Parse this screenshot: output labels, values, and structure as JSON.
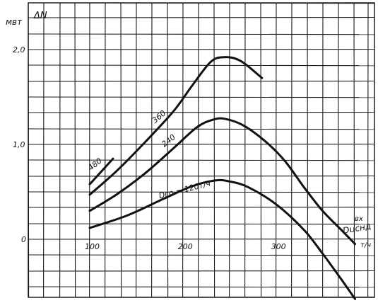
{
  "chart_data": {
    "type": "line",
    "title": "",
    "ylabel": "ΔN",
    "ylabel_unit": "мвт",
    "xlabel_line1": "вх",
    "xlabel_line2": "Dцснд",
    "xlabel_unit": "т/ч",
    "xlim": [
      0,
      490
    ],
    "ylim": [
      -1.1,
      2.7
    ],
    "x_ticks": [
      {
        "value": 100,
        "label": "100"
      },
      {
        "value": 200,
        "label": "200"
      },
      {
        "value": 300,
        "label": "300"
      }
    ],
    "y_ticks": [
      {
        "value": 0,
        "label": "0"
      },
      {
        "value": 1.0,
        "label": "1,0"
      },
      {
        "value": 2.0,
        "label": "2,0"
      }
    ],
    "grid": true,
    "series": [
      {
        "name": "480",
        "label_text": "480",
        "points": [
          [
            100,
            0.58
          ],
          [
            125,
            0.85
          ]
        ]
      },
      {
        "name": "360",
        "label_text": "360",
        "points": [
          [
            100,
            0.47
          ],
          [
            130,
            0.73
          ],
          [
            160,
            1.03
          ],
          [
            190,
            1.35
          ],
          [
            210,
            1.62
          ],
          [
            230,
            1.87
          ],
          [
            245,
            1.92
          ],
          [
            262,
            1.88
          ],
          [
            285,
            1.7
          ]
        ]
      },
      {
        "name": "240",
        "label_text": "240",
        "points": [
          [
            100,
            0.3
          ],
          [
            130,
            0.48
          ],
          [
            160,
            0.7
          ],
          [
            190,
            0.96
          ],
          [
            215,
            1.18
          ],
          [
            232,
            1.26
          ],
          [
            245,
            1.27
          ],
          [
            265,
            1.2
          ],
          [
            290,
            1.02
          ],
          [
            310,
            0.82
          ],
          [
            330,
            0.55
          ],
          [
            350,
            0.3
          ],
          [
            370,
            0.1
          ],
          [
            385,
            -0.05
          ]
        ]
      },
      {
        "name": "Dго=120т/ч",
        "label_text": "Dго = 120т/ч",
        "points": [
          [
            100,
            0.12
          ],
          [
            140,
            0.25
          ],
          [
            180,
            0.43
          ],
          [
            210,
            0.56
          ],
          [
            235,
            0.62
          ],
          [
            250,
            0.61
          ],
          [
            270,
            0.55
          ],
          [
            300,
            0.37
          ],
          [
            330,
            0.1
          ],
          [
            350,
            -0.15
          ],
          [
            370,
            -0.42
          ],
          [
            385,
            -0.63
          ]
        ]
      }
    ]
  }
}
